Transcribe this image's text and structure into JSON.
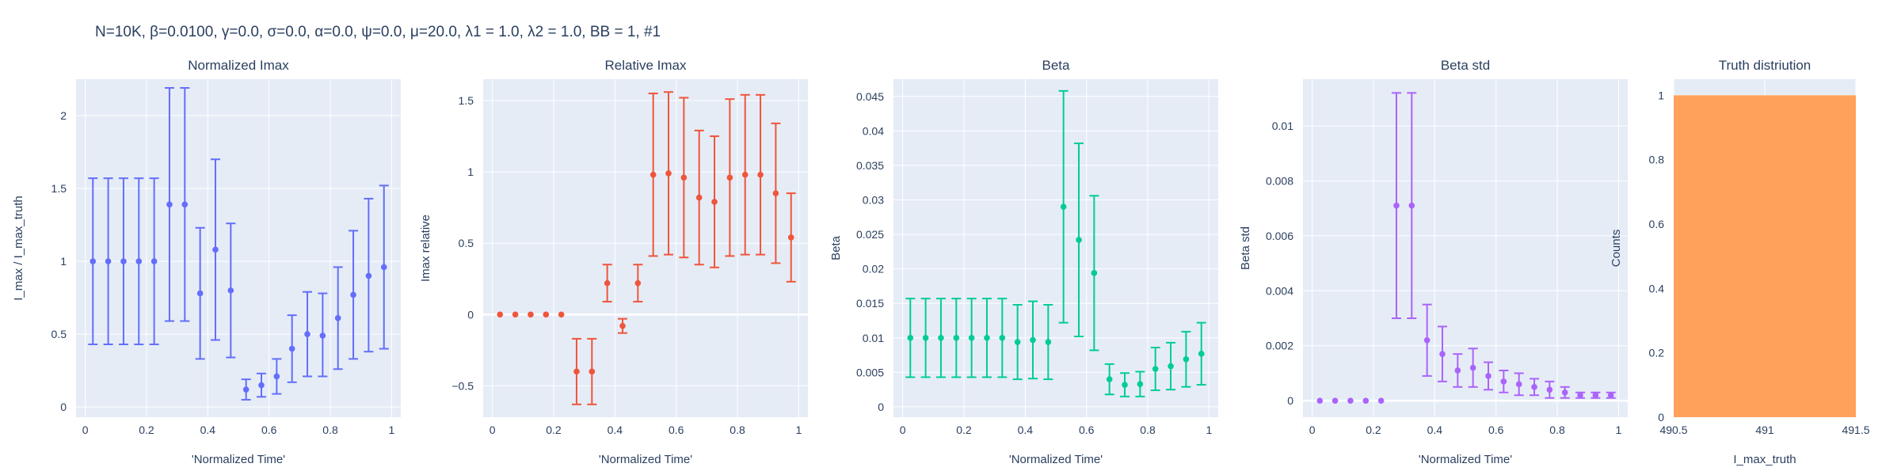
{
  "figure": {
    "title": "N=10K, β=0.0100, γ=0.0, σ=0.0,  α=0.0, ψ=0.0, μ=20.0, λ1 = 1.0, λ2 = 1.0, BB = 1, #1"
  },
  "chart_data": [
    {
      "type": "scatter",
      "title": "Normalized Imax",
      "xlabel": "'Normalized Time'",
      "ylabel": "I_max / I_max_truth",
      "color": "#636efa",
      "xlim": [
        -0.03,
        1.03
      ],
      "ylim": [
        -0.07,
        2.25
      ],
      "xticks": [
        0,
        0.2,
        0.4,
        0.6,
        0.8,
        1
      ],
      "xtick_labels": [
        "0",
        "0.2",
        "0.4",
        "0.6",
        "0.8",
        "1"
      ],
      "yticks": [
        0,
        0.5,
        1,
        1.5,
        2
      ],
      "ytick_labels": [
        "0",
        "0.5",
        "1",
        "1.5",
        "2"
      ],
      "zeroline": false,
      "x": [
        0.025,
        0.075,
        0.125,
        0.175,
        0.225,
        0.275,
        0.325,
        0.375,
        0.425,
        0.475,
        0.525,
        0.575,
        0.625,
        0.675,
        0.725,
        0.775,
        0.825,
        0.875,
        0.925,
        0.975
      ],
      "y": [
        1.0,
        1.0,
        1.0,
        1.0,
        1.0,
        1.39,
        1.39,
        0.78,
        1.08,
        0.8,
        0.12,
        0.15,
        0.21,
        0.4,
        0.5,
        0.49,
        0.61,
        0.77,
        0.9,
        0.96
      ],
      "err_plus": [
        0.57,
        0.57,
        0.57,
        0.57,
        0.57,
        0.8,
        0.8,
        0.45,
        0.62,
        0.46,
        0.07,
        0.08,
        0.12,
        0.23,
        0.29,
        0.29,
        0.35,
        0.44,
        0.53,
        0.56
      ],
      "err_minus": [
        0.57,
        0.57,
        0.57,
        0.57,
        0.57,
        0.8,
        0.8,
        0.45,
        0.62,
        0.46,
        0.07,
        0.08,
        0.12,
        0.23,
        0.29,
        0.28,
        0.35,
        0.44,
        0.52,
        0.56
      ]
    },
    {
      "type": "scatter",
      "title": "Relative Imax",
      "xlabel": "'Normalized Time'",
      "ylabel": "Imax relative",
      "color": "#ef553b",
      "xlim": [
        -0.03,
        1.03
      ],
      "ylim": [
        -0.72,
        1.65
      ],
      "xticks": [
        0,
        0.2,
        0.4,
        0.6,
        0.8,
        1
      ],
      "xtick_labels": [
        "0",
        "0.2",
        "0.4",
        "0.6",
        "0.8",
        "1"
      ],
      "yticks": [
        -0.5,
        0,
        0.5,
        1,
        1.5
      ],
      "ytick_labels": [
        "−0.5",
        "0",
        "0.5",
        "1",
        "1.5"
      ],
      "zeroline": true,
      "x": [
        0.025,
        0.075,
        0.125,
        0.175,
        0.225,
        0.275,
        0.325,
        0.375,
        0.425,
        0.475,
        0.525,
        0.575,
        0.625,
        0.675,
        0.725,
        0.775,
        0.825,
        0.875,
        0.925,
        0.975
      ],
      "y": [
        0,
        0,
        0,
        0,
        0,
        -0.4,
        -0.4,
        0.22,
        -0.08,
        0.22,
        0.98,
        0.99,
        0.96,
        0.82,
        0.79,
        0.96,
        0.98,
        0.98,
        0.85,
        0.54
      ],
      "err_plus": [
        0,
        0,
        0,
        0,
        0,
        0.23,
        0.23,
        0.13,
        0.05,
        0.13,
        0.57,
        0.57,
        0.56,
        0.47,
        0.46,
        0.55,
        0.56,
        0.56,
        0.49,
        0.31
      ],
      "err_minus": [
        0,
        0,
        0,
        0,
        0,
        0.23,
        0.23,
        0.13,
        0.05,
        0.13,
        0.57,
        0.57,
        0.56,
        0.47,
        0.46,
        0.55,
        0.56,
        0.56,
        0.49,
        0.31
      ]
    },
    {
      "type": "scatter",
      "title": "Beta",
      "xlabel": "'Normalized Time'",
      "ylabel": "Beta",
      "color": "#00cc96",
      "xlim": [
        -0.03,
        1.03
      ],
      "ylim": [
        -0.0015,
        0.0475
      ],
      "xticks": [
        0,
        0.2,
        0.4,
        0.6,
        0.8,
        1
      ],
      "xtick_labels": [
        "0",
        "0.2",
        "0.4",
        "0.6",
        "0.8",
        "1"
      ],
      "yticks": [
        0,
        0.005,
        0.01,
        0.015,
        0.02,
        0.025,
        0.03,
        0.035,
        0.04,
        0.045
      ],
      "ytick_labels": [
        "0",
        "0.005",
        "0.01",
        "0.015",
        "0.02",
        "0.025",
        "0.03",
        "0.035",
        "0.04",
        "0.045"
      ],
      "zeroline": false,
      "x": [
        0.025,
        0.075,
        0.125,
        0.175,
        0.225,
        0.275,
        0.325,
        0.375,
        0.425,
        0.475,
        0.525,
        0.575,
        0.625,
        0.675,
        0.725,
        0.775,
        0.825,
        0.875,
        0.925,
        0.975
      ],
      "y": [
        0.01,
        0.01,
        0.01,
        0.01,
        0.01,
        0.01,
        0.01,
        0.0094,
        0.0097,
        0.0094,
        0.029,
        0.0242,
        0.0194,
        0.004,
        0.0032,
        0.0033,
        0.0055,
        0.0059,
        0.0069,
        0.0077
      ],
      "err_plus": [
        0.0057,
        0.0057,
        0.0057,
        0.0057,
        0.0057,
        0.0057,
        0.0057,
        0.0054,
        0.0056,
        0.0054,
        0.0168,
        0.014,
        0.0112,
        0.0022,
        0.0017,
        0.0018,
        0.0031,
        0.0034,
        0.004,
        0.0045
      ],
      "err_minus": [
        0.0057,
        0.0057,
        0.0057,
        0.0057,
        0.0057,
        0.0057,
        0.0057,
        0.0054,
        0.0056,
        0.0054,
        0.0168,
        0.014,
        0.0112,
        0.0022,
        0.0017,
        0.0018,
        0.0031,
        0.0034,
        0.004,
        0.0045
      ]
    },
    {
      "type": "scatter",
      "title": "Beta std",
      "xlabel": "'Normalized Time'",
      "ylabel": "Beta std",
      "color": "#ab63fa",
      "xlim": [
        -0.03,
        1.03
      ],
      "ylim": [
        -0.0006,
        0.0117
      ],
      "xticks": [
        0,
        0.2,
        0.4,
        0.6,
        0.8,
        1
      ],
      "xtick_labels": [
        "0",
        "0.2",
        "0.4",
        "0.6",
        "0.8",
        "1"
      ],
      "yticks": [
        0,
        0.002,
        0.004,
        0.006,
        0.008,
        0.01
      ],
      "ytick_labels": [
        "0",
        "0.002",
        "0.004",
        "0.006",
        "0.008",
        "0.01"
      ],
      "zeroline": true,
      "x": [
        0.025,
        0.075,
        0.125,
        0.175,
        0.225,
        0.275,
        0.325,
        0.375,
        0.425,
        0.475,
        0.525,
        0.575,
        0.625,
        0.675,
        0.725,
        0.775,
        0.825,
        0.875,
        0.925,
        0.975
      ],
      "y": [
        0,
        0,
        0,
        0,
        0,
        0.0071,
        0.0071,
        0.0022,
        0.0017,
        0.0011,
        0.0012,
        0.0009,
        0.0007,
        0.0006,
        0.0005,
        0.0004,
        0.0003,
        0.0002,
        0.0002,
        0.0002
      ],
      "err_plus": [
        0,
        0,
        0,
        0,
        0,
        0.0041,
        0.0041,
        0.0013,
        0.001,
        0.0006,
        0.0007,
        0.0005,
        0.0004,
        0.0004,
        0.0003,
        0.0003,
        0.0002,
        0.0001,
        0.0001,
        0.0001
      ],
      "err_minus": [
        0,
        0,
        0,
        0,
        0,
        0.0041,
        0.0041,
        0.0013,
        0.001,
        0.0006,
        0.0007,
        0.0005,
        0.0004,
        0.0004,
        0.0003,
        0.0003,
        0.0002,
        0.0001,
        0.0001,
        0.0001
      ]
    },
    {
      "type": "bar",
      "title": "Truth distriution",
      "xlabel": "I_max_truth",
      "ylabel": "Counts",
      "color": "#ffa15a",
      "xlim": [
        490.5,
        491.5
      ],
      "ylim": [
        0,
        1.05
      ],
      "xticks": [
        490.5,
        491,
        491.5
      ],
      "xtick_labels": [
        "490.5",
        "491",
        "491.5"
      ],
      "yticks": [
        0,
        0.2,
        0.4,
        0.6,
        0.8,
        1
      ],
      "ytick_labels": [
        "0",
        "0.2",
        "0.4",
        "0.6",
        "0.8",
        "1"
      ],
      "bins": [
        {
          "x0": 490.5,
          "x1": 491.5,
          "count": 1
        }
      ]
    }
  ]
}
